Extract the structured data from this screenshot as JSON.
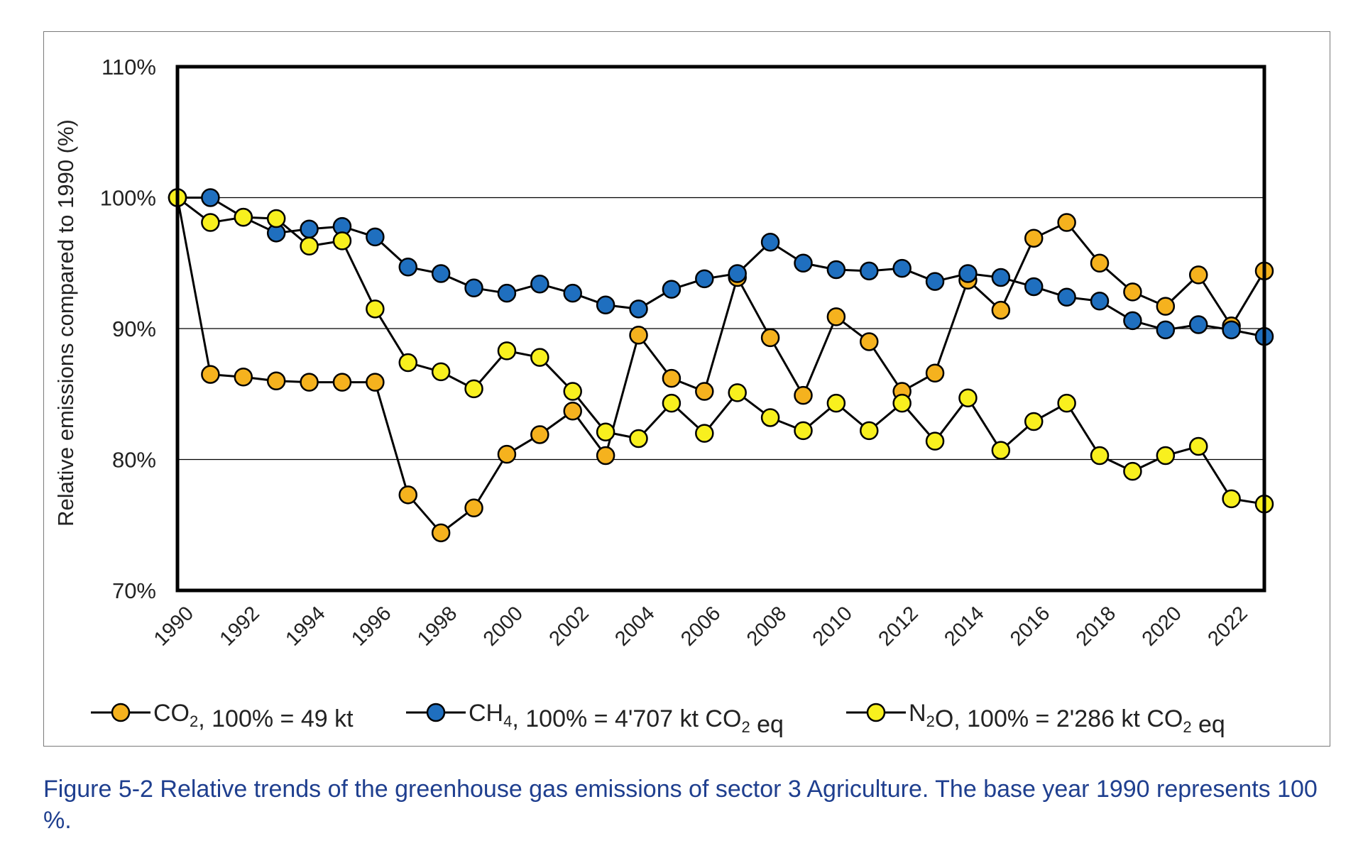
{
  "chart_data": {
    "type": "line",
    "ylabel": "Relative emissions compared to 1990 (%)",
    "xlabel": "",
    "ylim": [
      70,
      110
    ],
    "xlim": [
      1990,
      2023
    ],
    "yticks": [
      70,
      80,
      90,
      100,
      110
    ],
    "ytick_labels": [
      "70%",
      "80%",
      "90%",
      "100%",
      "110%"
    ],
    "xticks": [
      1990,
      1992,
      1994,
      1996,
      1998,
      2000,
      2002,
      2004,
      2006,
      2008,
      2010,
      2012,
      2014,
      2016,
      2018,
      2020,
      2022
    ],
    "xtick_labels": [
      "1990",
      "1992",
      "1994",
      "1996",
      "1998",
      "2000",
      "2002",
      "2004",
      "2006",
      "2008",
      "2010",
      "2012",
      "2014",
      "2016",
      "2018",
      "2020",
      "2022"
    ],
    "grid": "horizontal",
    "legend_position": "bottom",
    "x": [
      1990,
      1991,
      1992,
      1993,
      1994,
      1995,
      1996,
      1997,
      1998,
      1999,
      2000,
      2001,
      2002,
      2003,
      2004,
      2005,
      2006,
      2007,
      2008,
      2009,
      2010,
      2011,
      2012,
      2013,
      2014,
      2015,
      2016,
      2017,
      2018,
      2019,
      2020,
      2021,
      2022,
      2023
    ],
    "series": [
      {
        "legend_prefix": "CO",
        "legend_sub": "2",
        "legend_rest": ", 100% = 49 kt",
        "legend_rest_sub": "",
        "legend_tail": "",
        "color": "#f5b21e",
        "values": [
          100,
          86.5,
          86.3,
          86.0,
          85.9,
          85.9,
          85.9,
          77.3,
          74.4,
          76.3,
          80.4,
          81.9,
          83.7,
          80.3,
          89.5,
          86.2,
          85.2,
          93.9,
          89.3,
          84.9,
          90.9,
          89.0,
          85.2,
          86.6,
          93.7,
          91.4,
          96.9,
          98.1,
          95.0,
          92.8,
          91.7,
          94.1,
          90.2,
          94.4
        ]
      },
      {
        "legend_prefix": "CH",
        "legend_sub": "4",
        "legend_rest": ", 100% = 4'707 kt CO",
        "legend_rest_sub": "2",
        "legend_tail": " eq",
        "color": "#1f6fbf",
        "values": [
          100,
          100,
          98.5,
          97.3,
          97.6,
          97.8,
          97.0,
          94.7,
          94.2,
          93.1,
          92.7,
          93.4,
          92.7,
          91.8,
          91.5,
          93.0,
          93.8,
          94.2,
          96.6,
          95.0,
          94.5,
          94.4,
          94.6,
          93.6,
          94.2,
          93.9,
          93.2,
          92.4,
          92.1,
          90.6,
          89.9,
          90.3,
          89.9,
          89.4
        ]
      },
      {
        "legend_prefix": "N",
        "legend_sub": "2",
        "legend_rest": "O, 100% = 2'286 kt CO",
        "legend_rest_sub": "2",
        "legend_tail": " eq",
        "color": "#f8f01e",
        "values": [
          100,
          98.1,
          98.5,
          98.4,
          96.3,
          96.7,
          91.5,
          87.4,
          86.7,
          85.4,
          88.3,
          87.8,
          85.2,
          82.1,
          81.6,
          84.3,
          82.0,
          85.1,
          83.2,
          82.2,
          84.3,
          82.2,
          84.3,
          81.4,
          84.7,
          80.7,
          82.9,
          84.3,
          80.3,
          79.1,
          80.3,
          81.0,
          77.0,
          76.6
        ]
      }
    ]
  },
  "caption": {
    "text": "Figure 5-2 Relative trends of the greenhouse gas emissions of sector 3 Agriculture. The base year 1990 represents 100 %."
  }
}
